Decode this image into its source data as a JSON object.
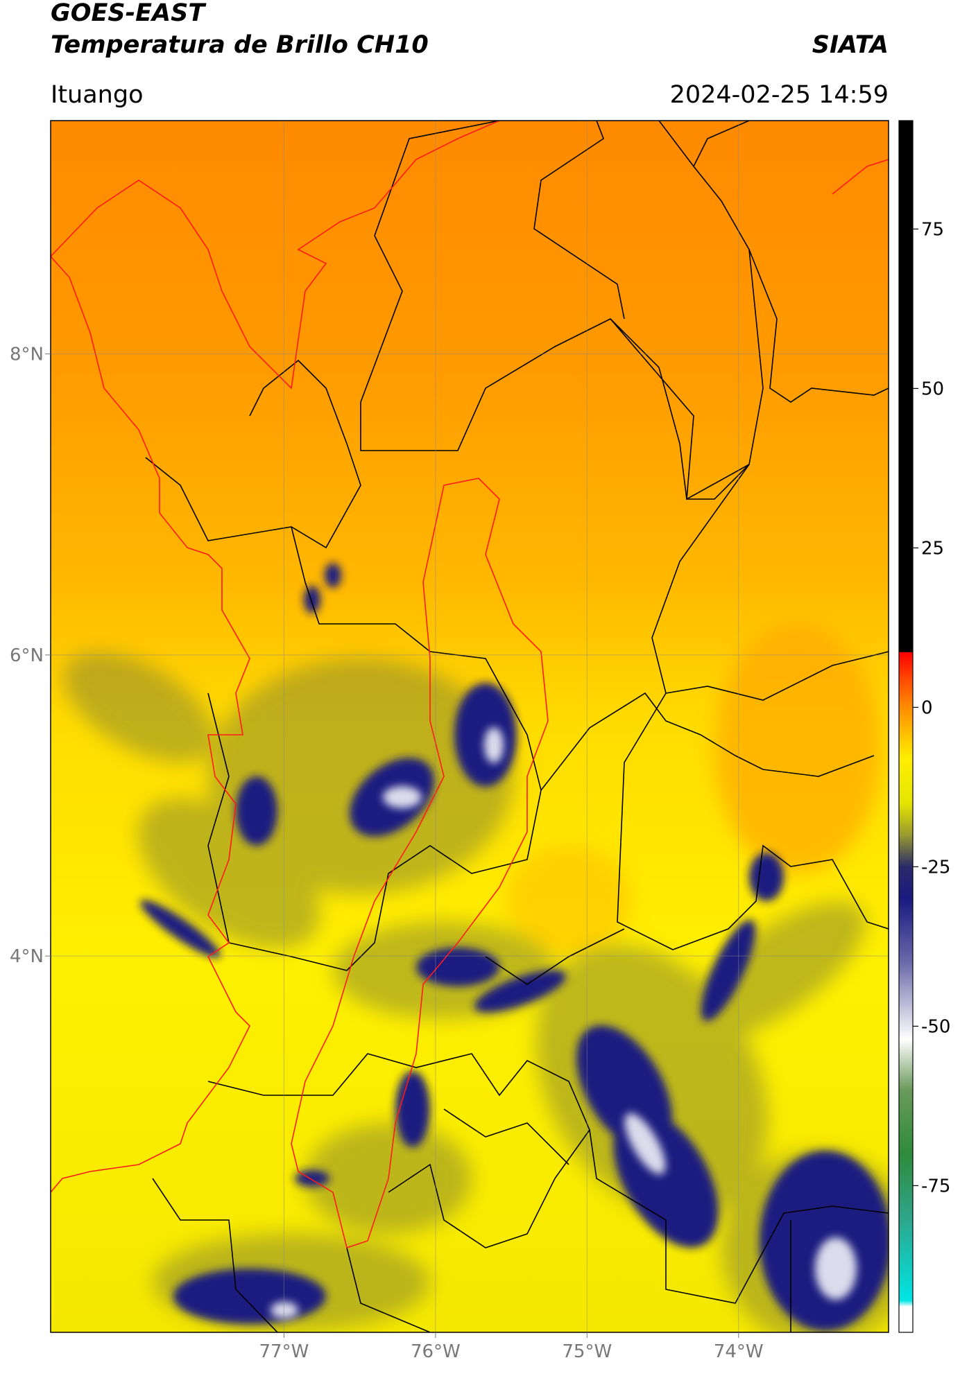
{
  "header": {
    "title": "GOES-EAST",
    "subtitle": "Temperatura de Brillo CH10",
    "brand": "SIATA",
    "location": "Ituango",
    "datetime": "2024-02-25 14:59"
  },
  "map": {
    "xlim": [
      -78.54,
      -73.01
    ],
    "ylim": [
      1.5,
      9.55
    ],
    "xticks": [
      {
        "value": -77,
        "label": "77°W"
      },
      {
        "value": -76,
        "label": "76°W"
      },
      {
        "value": -75,
        "label": "75°W"
      },
      {
        "value": -74,
        "label": "74°W"
      }
    ],
    "yticks": [
      {
        "value": 8,
        "label": "8°N"
      },
      {
        "value": 6,
        "label": "6°N"
      },
      {
        "value": 4,
        "label": "4°N"
      }
    ],
    "grid": true
  },
  "colorbar": {
    "lim": [
      -98,
      92
    ],
    "ticks": [
      75,
      50,
      25,
      0,
      -25,
      -50,
      -75
    ],
    "stops": [
      {
        "value": -98,
        "color": "#ffffff"
      },
      {
        "value": -94,
        "color": "#ffffff"
      },
      {
        "value": -93,
        "color": "#00e5e5"
      },
      {
        "value": -80,
        "color": "#2ea58a"
      },
      {
        "value": -70,
        "color": "#2e8b3a"
      },
      {
        "value": -60,
        "color": "#6a9a5a"
      },
      {
        "value": -52,
        "color": "#ffffff"
      },
      {
        "value": -40,
        "color": "#6a6aaa"
      },
      {
        "value": -30,
        "color": "#1a1a80"
      },
      {
        "value": -25,
        "color": "#2a2a6a"
      },
      {
        "value": -20,
        "color": "#9a9a30"
      },
      {
        "value": -15,
        "color": "#e5e500"
      },
      {
        "value": -8,
        "color": "#ffee00"
      },
      {
        "value": 0,
        "color": "#ff8c00"
      },
      {
        "value": 5,
        "color": "#ff4000"
      },
      {
        "value": 8.6,
        "color": "#ff0000"
      },
      {
        "value": 8.7,
        "color": "#000000"
      },
      {
        "value": 92,
        "color": "#000000"
      }
    ]
  }
}
